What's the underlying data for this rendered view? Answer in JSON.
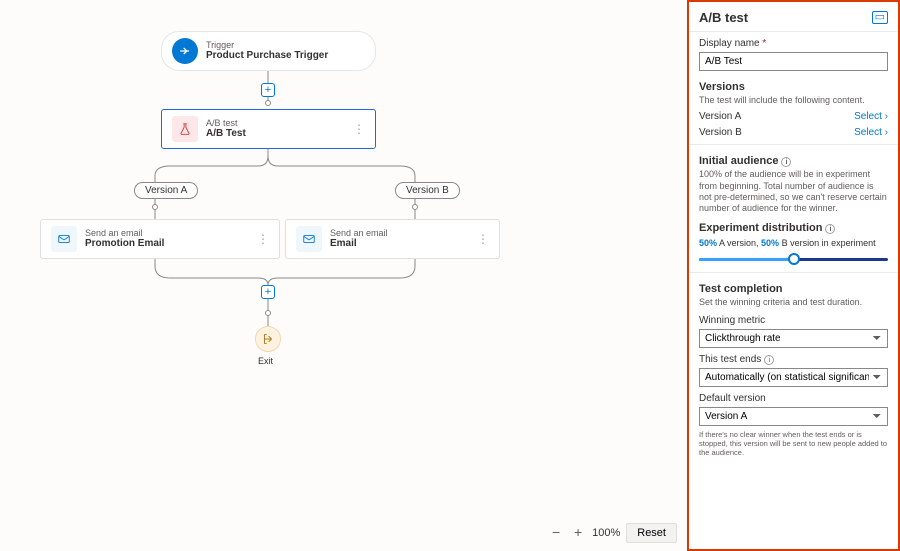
{
  "canvas": {
    "trigger": {
      "subtitle": "Trigger",
      "title": "Product Purchase Trigger"
    },
    "abtest": {
      "subtitle": "A/B test",
      "title": "A/B Test"
    },
    "branchA": {
      "pill": "Version A",
      "email_sub": "Send an email",
      "email_title": "Promotion Email"
    },
    "branchB": {
      "pill": "Version B",
      "email_sub": "Send an email",
      "email_title": "Email"
    },
    "exit": "Exit",
    "zoom": {
      "pct": "100%",
      "reset": "Reset"
    }
  },
  "panel": {
    "title": "A/B test",
    "display_name_label": "Display name",
    "display_name_value": "A/B Test",
    "versions_title": "Versions",
    "versions_sub": "The test will include the following content.",
    "versionA": "Version A",
    "versionB": "Version B",
    "select": "Select",
    "initial_title": "Initial audience",
    "initial_body": "100% of the audience will be in experiment from beginning. Total number of audience is not pre-determined, so we can't reserve certain number of audience for the winner.",
    "dist_title": "Experiment distribution",
    "dist_pctA": "50%",
    "dist_pctB": "50%",
    "dist_textA": " A version, ",
    "dist_textB": " B version in experiment",
    "slider_pct": 50,
    "completion_title": "Test completion",
    "completion_sub": "Set the winning criteria and test duration.",
    "metric_label": "Winning metric",
    "metric_value": "Clickthrough rate",
    "ends_label": "This test ends",
    "ends_value": "Automatically (on statistical significance)",
    "default_label": "Default version",
    "default_value": "Version A",
    "footnote": "If there's no clear winner when the test ends or is stopped, this version will be sent to new people added to the audience."
  },
  "colors": {
    "primary": "#0078d4",
    "highlight_border": "#d83b01"
  }
}
